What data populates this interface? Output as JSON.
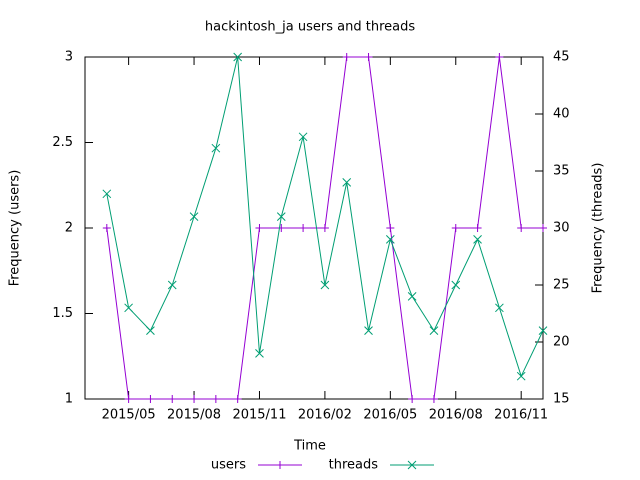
{
  "chart_data": {
    "type": "line",
    "title": "hackintosh_ja users and threads",
    "xlabel": "Time",
    "ylabel": "Frequency (users)",
    "y2label": "Frequency (threads)",
    "x": [
      "2015/04",
      "2015/05",
      "2015/06",
      "2015/07",
      "2015/08",
      "2015/09",
      "2015/10",
      "2015/11",
      "2015/12",
      "2016/01",
      "2016/02",
      "2016/03",
      "2016/04",
      "2016/05",
      "2016/06",
      "2016/07",
      "2016/08",
      "2016/09",
      "2016/10",
      "2016/11",
      "2016/12"
    ],
    "series": [
      {
        "name": "users",
        "color": "#9400d3",
        "marker": "plus",
        "values": [
          2,
          1,
          1,
          1,
          1,
          1,
          1,
          2,
          2,
          2,
          2,
          3,
          3,
          2,
          1,
          1,
          2,
          2,
          3,
          2,
          2
        ]
      },
      {
        "name": "threads",
        "color": "#009e73",
        "marker": "x",
        "axis": "y2",
        "values": [
          33,
          23,
          21,
          25,
          31,
          37,
          45,
          19,
          31,
          38,
          25,
          34,
          21,
          29,
          24,
          21,
          25,
          29,
          23,
          17,
          21
        ]
      }
    ],
    "xlim": [
      "2015/03",
      "2016/12"
    ],
    "xticks": [
      "2015/05",
      "2015/08",
      "2015/11",
      "2016/02",
      "2016/05",
      "2016/08",
      "2016/11"
    ],
    "ylim": [
      1,
      3
    ],
    "yticks": [
      1,
      1.5,
      2,
      2.5,
      3
    ],
    "y2lim": [
      15,
      45
    ],
    "y2ticks": [
      15,
      20,
      25,
      30,
      35,
      40,
      45
    ],
    "grid": false,
    "legend": "bottom"
  }
}
